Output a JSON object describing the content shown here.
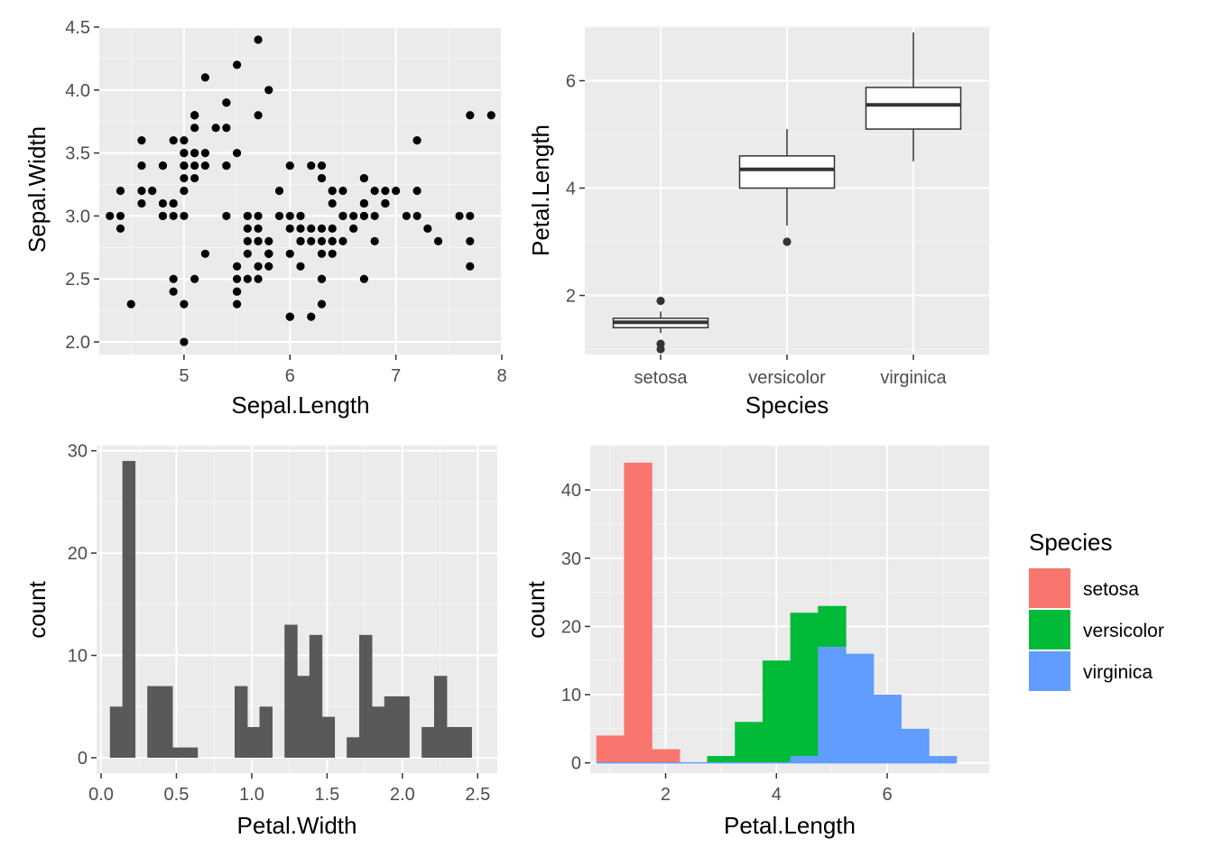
{
  "theme": {
    "panel_bg": "#ebebeb",
    "grid_major": "#ffffff",
    "grid_minor": "#f5f5f5",
    "tick_text": "#4d4d4d",
    "dark_fill": "#595959",
    "point_color": "#000000"
  },
  "chart_data": [
    {
      "id": "scatter",
      "type": "scatter",
      "xlabel": "Sepal.Length",
      "ylabel": "Sepal.Width",
      "xlim": [
        4.2,
        8.0
      ],
      "ylim": [
        1.9,
        4.5
      ],
      "x_ticks": [
        5,
        6,
        7,
        8
      ],
      "x_tick_labels": [
        "5",
        "6",
        "7",
        "8"
      ],
      "y_ticks": [
        2.0,
        2.5,
        3.0,
        3.5,
        4.0,
        4.5
      ],
      "y_tick_labels": [
        "2.0",
        "2.5",
        "3.0",
        "3.5",
        "4.0",
        "4.5"
      ],
      "points": [
        [
          5.1,
          3.5
        ],
        [
          4.9,
          3.0
        ],
        [
          4.7,
          3.2
        ],
        [
          4.6,
          3.1
        ],
        [
          5.0,
          3.6
        ],
        [
          5.4,
          3.9
        ],
        [
          4.6,
          3.4
        ],
        [
          5.0,
          3.4
        ],
        [
          4.4,
          2.9
        ],
        [
          4.9,
          3.1
        ],
        [
          5.4,
          3.7
        ],
        [
          4.8,
          3.4
        ],
        [
          4.8,
          3.0
        ],
        [
          4.3,
          3.0
        ],
        [
          5.8,
          4.0
        ],
        [
          5.7,
          4.4
        ],
        [
          5.4,
          3.9
        ],
        [
          5.1,
          3.5
        ],
        [
          5.7,
          3.8
        ],
        [
          5.1,
          3.8
        ],
        [
          5.4,
          3.4
        ],
        [
          5.1,
          3.7
        ],
        [
          4.6,
          3.6
        ],
        [
          5.1,
          3.3
        ],
        [
          4.8,
          3.4
        ],
        [
          5.0,
          3.0
        ],
        [
          5.0,
          3.4
        ],
        [
          5.2,
          3.5
        ],
        [
          5.2,
          3.4
        ],
        [
          4.7,
          3.2
        ],
        [
          4.8,
          3.1
        ],
        [
          5.4,
          3.4
        ],
        [
          5.2,
          4.1
        ],
        [
          5.5,
          4.2
        ],
        [
          4.9,
          3.1
        ],
        [
          5.0,
          3.2
        ],
        [
          5.5,
          3.5
        ],
        [
          4.9,
          3.6
        ],
        [
          4.4,
          3.0
        ],
        [
          5.1,
          3.4
        ],
        [
          5.0,
          3.5
        ],
        [
          4.5,
          2.3
        ],
        [
          4.4,
          3.2
        ],
        [
          5.0,
          3.5
        ],
        [
          5.1,
          3.8
        ],
        [
          4.8,
          3.0
        ],
        [
          5.1,
          3.8
        ],
        [
          4.6,
          3.2
        ],
        [
          5.3,
          3.7
        ],
        [
          5.0,
          3.3
        ],
        [
          7.0,
          3.2
        ],
        [
          6.4,
          3.2
        ],
        [
          6.9,
          3.1
        ],
        [
          5.5,
          2.3
        ],
        [
          6.5,
          2.8
        ],
        [
          5.7,
          2.8
        ],
        [
          6.3,
          3.3
        ],
        [
          4.9,
          2.4
        ],
        [
          6.6,
          2.9
        ],
        [
          5.2,
          2.7
        ],
        [
          5.0,
          2.0
        ],
        [
          5.9,
          3.0
        ],
        [
          6.0,
          2.2
        ],
        [
          6.1,
          2.9
        ],
        [
          5.6,
          2.9
        ],
        [
          6.7,
          3.1
        ],
        [
          5.6,
          3.0
        ],
        [
          5.8,
          2.7
        ],
        [
          6.2,
          2.2
        ],
        [
          5.6,
          2.5
        ],
        [
          5.9,
          3.2
        ],
        [
          6.1,
          2.8
        ],
        [
          6.3,
          2.5
        ],
        [
          6.1,
          2.8
        ],
        [
          6.4,
          2.9
        ],
        [
          6.6,
          3.0
        ],
        [
          6.8,
          2.8
        ],
        [
          6.7,
          3.0
        ],
        [
          6.0,
          2.9
        ],
        [
          5.7,
          2.6
        ],
        [
          5.5,
          2.4
        ],
        [
          5.5,
          2.4
        ],
        [
          5.8,
          2.7
        ],
        [
          6.0,
          2.7
        ],
        [
          5.4,
          3.0
        ],
        [
          6.0,
          3.4
        ],
        [
          6.7,
          3.1
        ],
        [
          6.3,
          2.3
        ],
        [
          5.6,
          3.0
        ],
        [
          5.5,
          2.5
        ],
        [
          5.5,
          2.6
        ],
        [
          6.1,
          3.0
        ],
        [
          5.8,
          2.6
        ],
        [
          5.0,
          2.3
        ],
        [
          5.6,
          2.7
        ],
        [
          5.7,
          3.0
        ],
        [
          5.7,
          2.9
        ],
        [
          6.2,
          2.9
        ],
        [
          5.1,
          2.5
        ],
        [
          5.7,
          2.8
        ],
        [
          6.3,
          3.3
        ],
        [
          5.8,
          2.7
        ],
        [
          7.1,
          3.0
        ],
        [
          6.3,
          2.9
        ],
        [
          6.5,
          3.0
        ],
        [
          7.6,
          3.0
        ],
        [
          4.9,
          2.5
        ],
        [
          7.3,
          2.9
        ],
        [
          6.7,
          2.5
        ],
        [
          7.2,
          3.6
        ],
        [
          6.5,
          3.2
        ],
        [
          6.4,
          2.7
        ],
        [
          6.8,
          3.0
        ],
        [
          5.7,
          2.5
        ],
        [
          5.8,
          2.8
        ],
        [
          6.4,
          3.2
        ],
        [
          6.5,
          3.0
        ],
        [
          7.7,
          3.8
        ],
        [
          7.7,
          2.6
        ],
        [
          6.0,
          2.2
        ],
        [
          6.9,
          3.2
        ],
        [
          5.6,
          2.8
        ],
        [
          7.7,
          2.8
        ],
        [
          6.3,
          2.7
        ],
        [
          6.7,
          3.3
        ],
        [
          7.2,
          3.2
        ],
        [
          6.2,
          2.8
        ],
        [
          6.1,
          3.0
        ],
        [
          6.4,
          2.8
        ],
        [
          7.2,
          3.0
        ],
        [
          7.4,
          2.8
        ],
        [
          7.9,
          3.8
        ],
        [
          6.4,
          2.8
        ],
        [
          6.3,
          2.8
        ],
        [
          6.1,
          2.6
        ],
        [
          7.7,
          3.0
        ],
        [
          6.3,
          3.4
        ],
        [
          6.4,
          3.1
        ],
        [
          6.0,
          3.0
        ],
        [
          6.9,
          3.1
        ],
        [
          6.7,
          3.1
        ],
        [
          6.9,
          3.1
        ],
        [
          5.8,
          2.7
        ],
        [
          6.8,
          3.2
        ],
        [
          6.7,
          3.3
        ],
        [
          6.7,
          3.0
        ],
        [
          6.3,
          2.5
        ],
        [
          6.5,
          3.0
        ],
        [
          6.2,
          3.4
        ],
        [
          5.9,
          3.0
        ]
      ]
    },
    {
      "id": "boxplot",
      "type": "box",
      "xlabel": "Species",
      "ylabel": "Petal.Length",
      "categories": [
        "setosa",
        "versicolor",
        "virginica"
      ],
      "ylim": [
        0.9,
        7.0
      ],
      "y_ticks": [
        2,
        4,
        6
      ],
      "y_tick_labels": [
        "2",
        "4",
        "6"
      ],
      "boxes": [
        {
          "lower_whisker": 1.3,
          "q1": 1.4,
          "median": 1.5,
          "q3": 1.575,
          "upper_whisker": 1.7,
          "outliers": [
            1.0,
            1.1,
            1.9
          ]
        },
        {
          "lower_whisker": 3.3,
          "q1": 4.0,
          "median": 4.35,
          "q3": 4.6,
          "upper_whisker": 5.1,
          "outliers": [
            3.0
          ]
        },
        {
          "lower_whisker": 4.5,
          "q1": 5.1,
          "median": 5.55,
          "q3": 5.875,
          "upper_whisker": 6.9,
          "outliers": []
        }
      ]
    },
    {
      "id": "hist-width",
      "type": "bar",
      "xlabel": "Petal.Width",
      "ylabel": "count",
      "xlim": [
        -0.03,
        2.63
      ],
      "ylim": [
        -1.5,
        30.5
      ],
      "x_ticks": [
        0.0,
        0.5,
        1.0,
        1.5,
        2.0,
        2.5
      ],
      "x_tick_labels": [
        "0.0",
        "0.5",
        "1.0",
        "1.5",
        "2.0",
        "2.5"
      ],
      "y_ticks": [
        0,
        10,
        20,
        30
      ],
      "y_tick_labels": [
        "0",
        "10",
        "20",
        "30"
      ],
      "bin_width": 0.0828,
      "bin_centers": [
        0.1,
        0.183,
        0.266,
        0.348,
        0.431,
        0.514,
        0.597,
        0.679,
        0.762,
        0.845,
        0.928,
        1.01,
        1.093,
        1.176,
        1.259,
        1.341,
        1.424,
        1.507,
        1.59,
        1.672,
        1.755,
        1.838,
        1.921,
        2.003,
        2.086,
        2.169,
        2.252,
        2.334,
        2.417,
        2.5
      ],
      "values": [
        5,
        29,
        0,
        7,
        7,
        1,
        1,
        0,
        0,
        0,
        7,
        3,
        5,
        0,
        13,
        8,
        12,
        4,
        0,
        2,
        12,
        5,
        6,
        6,
        0,
        3,
        8,
        3,
        3,
        0
      ]
    },
    {
      "id": "hist-length",
      "type": "bar",
      "stacked": true,
      "xlabel": "Petal.Length",
      "ylabel": "count",
      "xlim": [
        0.64,
        7.84
      ],
      "ylim": [
        -1.5,
        46.5
      ],
      "x_ticks": [
        2,
        4,
        6
      ],
      "x_tick_labels": [
        "2",
        "4",
        "6"
      ],
      "y_ticks": [
        0,
        10,
        20,
        30,
        40
      ],
      "y_tick_labels": [
        "0",
        "10",
        "20",
        "30",
        "40"
      ],
      "bin_width": 0.5,
      "bin_centers": [
        1.0,
        1.5,
        2.0,
        2.5,
        3.0,
        3.5,
        4.0,
        4.5,
        5.0,
        5.5,
        6.0,
        6.5,
        7.0
      ],
      "series": [
        {
          "name": "setosa",
          "color": "#F8766D",
          "values": [
            4,
            44,
            2,
            0,
            0,
            0,
            0,
            0,
            0,
            0,
            0,
            0,
            0
          ]
        },
        {
          "name": "versicolor",
          "color": "#00BA38",
          "values": [
            0,
            0,
            0,
            0,
            1,
            6,
            15,
            21,
            6,
            0,
            0,
            0,
            0
          ]
        },
        {
          "name": "virginica",
          "color": "#619CFF",
          "values": [
            0,
            0,
            0,
            0,
            0,
            0,
            0,
            1,
            17,
            16,
            10,
            5,
            1
          ]
        }
      ],
      "legend": {
        "title": "Species",
        "position": "right",
        "labels": [
          "setosa",
          "versicolor",
          "virginica"
        ]
      }
    }
  ]
}
